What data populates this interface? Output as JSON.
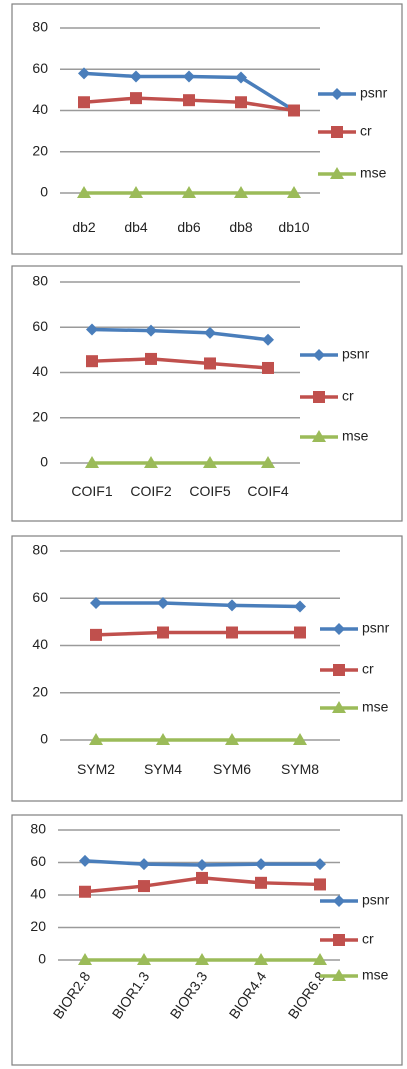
{
  "colors": {
    "psnr": "#4a7ebb",
    "cr": "#c0504d",
    "mse": "#9bbb59"
  },
  "chart_data": [
    {
      "type": "line",
      "categories": [
        "db2",
        "db4",
        "db6",
        "db8",
        "db10"
      ],
      "ylim": [
        0,
        80
      ],
      "yticks": [
        0,
        20,
        40,
        60,
        80
      ],
      "grid": true,
      "legend_position": "right",
      "series": [
        {
          "name": "psnr",
          "marker": "diamond",
          "values": [
            58,
            56.5,
            56.5,
            56,
            40
          ]
        },
        {
          "name": "cr",
          "marker": "square",
          "values": [
            44,
            46,
            45,
            44,
            40
          ]
        },
        {
          "name": "mse",
          "marker": "triangle",
          "values": [
            0,
            0,
            0,
            0,
            0
          ]
        }
      ]
    },
    {
      "type": "line",
      "categories": [
        "COIF1",
        "COIF2",
        "COIF5",
        "COIF4"
      ],
      "ylim": [
        0,
        80
      ],
      "yticks": [
        0,
        20,
        40,
        60,
        80
      ],
      "grid": true,
      "legend_position": "right",
      "series": [
        {
          "name": "psnr",
          "marker": "diamond",
          "values": [
            59,
            58.5,
            57.5,
            54.5
          ]
        },
        {
          "name": "cr",
          "marker": "square",
          "values": [
            45,
            46,
            44,
            42
          ]
        },
        {
          "name": "mse",
          "marker": "triangle",
          "values": [
            0,
            0,
            0,
            0
          ]
        }
      ]
    },
    {
      "type": "line",
      "categories": [
        "SYM2",
        "SYM4",
        "SYM6",
        "SYM8"
      ],
      "ylim": [
        0,
        80
      ],
      "yticks": [
        0,
        20,
        40,
        60,
        80
      ],
      "grid": true,
      "legend_position": "right",
      "series": [
        {
          "name": "psnr",
          "marker": "diamond",
          "values": [
            58,
            58,
            57,
            56.5
          ]
        },
        {
          "name": "cr",
          "marker": "square",
          "values": [
            44.5,
            45.5,
            45.5,
            45.5
          ]
        },
        {
          "name": "mse",
          "marker": "triangle",
          "values": [
            0,
            0,
            0,
            0
          ]
        }
      ]
    },
    {
      "type": "line",
      "categories": [
        "BIOR2.8",
        "BIOR1.3",
        "BIOR3.3",
        "BIOR4.4",
        "BIOR6.8"
      ],
      "ylim": [
        0,
        80
      ],
      "yticks": [
        0,
        20,
        40,
        60,
        80
      ],
      "grid": true,
      "legend_position": "right",
      "x_tick_rotation": "rotated",
      "series": [
        {
          "name": "psnr",
          "marker": "diamond",
          "values": [
            61,
            59,
            58.5,
            59,
            59
          ]
        },
        {
          "name": "cr",
          "marker": "square",
          "values": [
            42,
            45.5,
            50.5,
            47.5,
            46.5
          ]
        },
        {
          "name": "mse",
          "marker": "triangle",
          "values": [
            0,
            0,
            0,
            0,
            0
          ]
        }
      ]
    }
  ]
}
